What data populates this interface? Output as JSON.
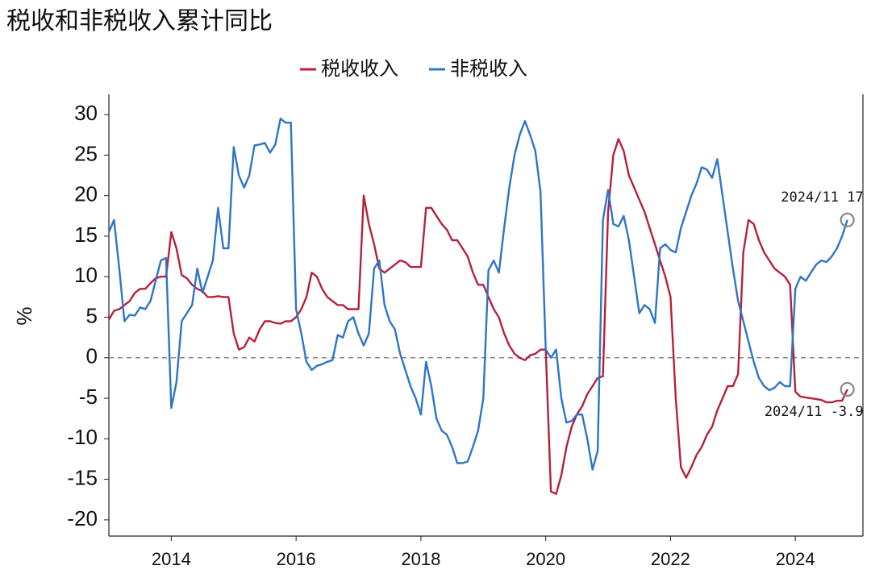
{
  "chart_data": {
    "type": "line",
    "title": "税收和非税收入累计同比",
    "y_label": "%",
    "x": [
      "2013/01",
      "2013/02",
      "2013/03",
      "2013/04",
      "2013/05",
      "2013/06",
      "2013/07",
      "2013/08",
      "2013/09",
      "2013/10",
      "2013/11",
      "2013/12",
      "2014/01",
      "2014/02",
      "2014/03",
      "2014/04",
      "2014/05",
      "2014/06",
      "2014/07",
      "2014/08",
      "2014/09",
      "2014/10",
      "2014/11",
      "2014/12",
      "2015/01",
      "2015/02",
      "2015/03",
      "2015/04",
      "2015/05",
      "2015/06",
      "2015/07",
      "2015/08",
      "2015/09",
      "2015/10",
      "2015/11",
      "2015/12",
      "2016/01",
      "2016/02",
      "2016/03",
      "2016/04",
      "2016/05",
      "2016/06",
      "2016/07",
      "2016/08",
      "2016/09",
      "2016/10",
      "2016/11",
      "2016/12",
      "2017/01",
      "2017/02",
      "2017/03",
      "2017/04",
      "2017/05",
      "2017/06",
      "2017/07",
      "2017/08",
      "2017/09",
      "2017/10",
      "2017/11",
      "2017/12",
      "2018/01",
      "2018/02",
      "2018/03",
      "2018/04",
      "2018/05",
      "2018/06",
      "2018/07",
      "2018/08",
      "2018/09",
      "2018/10",
      "2018/11",
      "2018/12",
      "2019/01",
      "2019/02",
      "2019/03",
      "2019/04",
      "2019/05",
      "2019/06",
      "2019/07",
      "2019/08",
      "2019/09",
      "2019/10",
      "2019/11",
      "2019/12",
      "2020/01",
      "2020/02",
      "2020/03",
      "2020/04",
      "2020/05",
      "2020/06",
      "2020/07",
      "2020/08",
      "2020/09",
      "2020/10",
      "2020/11",
      "2020/12",
      "2021/01",
      "2021/02",
      "2021/03",
      "2021/04",
      "2021/05",
      "2021/06",
      "2021/07",
      "2021/08",
      "2021/09",
      "2021/10",
      "2021/11",
      "2021/12",
      "2022/01",
      "2022/02",
      "2022/03",
      "2022/04",
      "2022/05",
      "2022/06",
      "2022/07",
      "2022/08",
      "2022/09",
      "2022/10",
      "2022/11",
      "2022/12",
      "2023/01",
      "2023/02",
      "2023/03",
      "2023/04",
      "2023/05",
      "2023/06",
      "2023/07",
      "2023/08",
      "2023/09",
      "2023/10",
      "2023/11",
      "2023/12",
      "2024/01",
      "2024/02",
      "2024/03",
      "2024/04",
      "2024/05",
      "2024/06",
      "2024/07",
      "2024/08",
      "2024/09",
      "2024/10",
      "2024/11"
    ],
    "series": [
      {
        "name": "税收收入",
        "color": "#b5213a",
        "values": [
          4.7,
          5.8,
          6,
          6.5,
          7,
          8,
          8.5,
          8.5,
          9.2,
          9.8,
          10,
          10,
          15.5,
          13.5,
          10.2,
          9.8,
          9,
          8.5,
          8.2,
          7.5,
          7.5,
          7.6,
          7.5,
          7.5,
          3,
          1,
          1.3,
          2.5,
          2,
          3.5,
          4.5,
          4.5,
          4.3,
          4.2,
          4.5,
          4.5,
          5,
          6,
          7.5,
          10.5,
          10,
          8.5,
          7.5,
          7,
          6.5,
          6.5,
          6,
          6,
          6,
          20,
          16.5,
          14,
          11,
          10.5,
          11,
          11.5,
          12,
          11.8,
          11.2,
          11.2,
          11.2,
          18.5,
          18.5,
          17.5,
          16.5,
          15.8,
          14.5,
          14.5,
          13.5,
          12.5,
          10.5,
          9,
          9,
          7.5,
          6,
          5,
          3,
          1.5,
          0.5,
          0,
          -0.3,
          0.3,
          0.5,
          1,
          1,
          -16.5,
          -16.8,
          -14.5,
          -11,
          -8.5,
          -7,
          -6,
          -4.5,
          -3.5,
          -2.5,
          -2.3,
          18,
          25,
          27,
          25.5,
          22.5,
          21,
          19.5,
          18,
          16,
          14,
          12,
          10,
          7.5,
          -5,
          -13.5,
          -14.8,
          -13.5,
          -12,
          -11,
          -9.5,
          -8.5,
          -6.5,
          -5,
          -3.5,
          -3.5,
          -2,
          13,
          17,
          16.5,
          14.5,
          13,
          12,
          11,
          10.5,
          10,
          9,
          -4.2,
          -4.8,
          -4.9,
          -5,
          -5.1,
          -5.2,
          -5.5,
          -5.5,
          -5.3,
          -5.3,
          -3.9
        ]
      },
      {
        "name": "非税收入",
        "color": "#2e75c8",
        "values": [
          15.5,
          17,
          11,
          4.5,
          5.3,
          5.2,
          6.2,
          6,
          7,
          9.5,
          12,
          12.3,
          -6.2,
          -3,
          4.5,
          5.5,
          6.5,
          11,
          8,
          10,
          12,
          18.5,
          13.5,
          13.5,
          26,
          22.5,
          21,
          22.5,
          26.2,
          26.3,
          26.5,
          25.3,
          26.3,
          29.5,
          29,
          29,
          6,
          3,
          -0.5,
          -1.5,
          -1,
          -0.8,
          -0.5,
          -0.3,
          2.8,
          2.5,
          4.5,
          5,
          3,
          1.5,
          3,
          11,
          12,
          6.5,
          4.5,
          3.5,
          0.5,
          -1.5,
          -3.5,
          -5,
          -7,
          -0.5,
          -3.5,
          -7.5,
          -9,
          -9.5,
          -11,
          -13,
          -13,
          -12.8,
          -11,
          -9,
          -5,
          10.8,
          12,
          10.5,
          16,
          21,
          25,
          27.5,
          29.2,
          27.5,
          25.5,
          20.5,
          1,
          0,
          1,
          -5,
          -8,
          -7.8,
          -7,
          -7,
          -10,
          -13.8,
          -11.5,
          17,
          20.7,
          16.5,
          16.2,
          17.5,
          14.5,
          10,
          5.5,
          6.5,
          6,
          4.3,
          13.5,
          14,
          13.3,
          13,
          16,
          18,
          20,
          21.5,
          23.5,
          23.2,
          22.2,
          24.5,
          20,
          15.5,
          11,
          7,
          4.5,
          2,
          -0.5,
          -2.5,
          -3.5,
          -4,
          -3.7,
          -3,
          -3.5,
          -3.5,
          8.5,
          10,
          9.5,
          10.5,
          11.5,
          12,
          11.8,
          12.5,
          13.5,
          15,
          17
        ]
      }
    ],
    "xlim": [
      "2013/01",
      "2025/02"
    ],
    "xticks": [
      {
        "value": "2014/01",
        "label": "2014"
      },
      {
        "value": "2016/01",
        "label": "2016"
      },
      {
        "value": "2018/01",
        "label": "2018"
      },
      {
        "value": "2020/01",
        "label": "2020"
      },
      {
        "value": "2022/01",
        "label": "2022"
      },
      {
        "value": "2024/01",
        "label": "2024"
      }
    ],
    "ylim": [
      -22,
      32.5
    ],
    "yticks": [
      -20,
      -15,
      -10,
      -5,
      0,
      5,
      10,
      15,
      20,
      25,
      30
    ],
    "zero_line": true,
    "legend": "top",
    "annotations": [
      {
        "text": "2024/11  17",
        "series": 1
      },
      {
        "text": "2024/11  -3.9",
        "series": 0
      }
    ]
  }
}
